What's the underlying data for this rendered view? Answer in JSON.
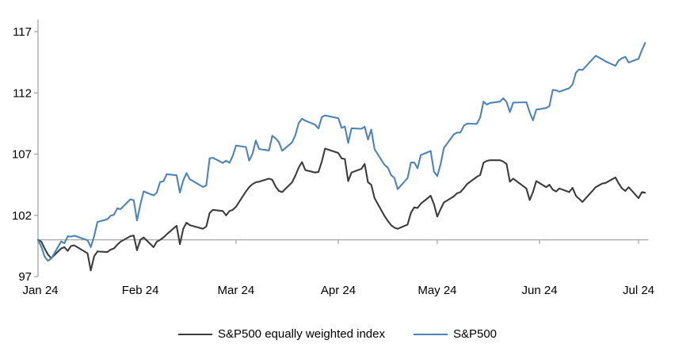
{
  "chart_data": {
    "type": "line",
    "title": "",
    "x_axis": {
      "tick_labels": [
        "Jan 24",
        "Feb 24",
        "Mar 24",
        "Apr 24",
        "May 24",
        "Jun 24",
        "Jul 24"
      ],
      "tick_days": [
        0,
        31,
        60,
        91,
        121,
        152,
        182
      ],
      "baseline_value": 100,
      "max_day": 184.5
    },
    "y_axis": {
      "tick_labels": [
        "97",
        "102",
        "107",
        "112",
        "117"
      ],
      "ticks": [
        97,
        102,
        107,
        112,
        117
      ],
      "min": 97,
      "max": 118
    },
    "grid": "off",
    "legend_position": "bottom-center",
    "axis_color": "#a6a6a6",
    "label_color": "#000000",
    "days": [
      0,
      1,
      2,
      3,
      4,
      7,
      8,
      9,
      10,
      11,
      15,
      16,
      17,
      18,
      21,
      22,
      23,
      24,
      25,
      28,
      29,
      30,
      31,
      32,
      35,
      36,
      37,
      38,
      39,
      42,
      43,
      44,
      45,
      46,
      50,
      51,
      52,
      53,
      56,
      57,
      58,
      59,
      60,
      63,
      64,
      65,
      66,
      67,
      70,
      71,
      72,
      73,
      74,
      77,
      78,
      79,
      80,
      81,
      84,
      85,
      86,
      87,
      91,
      92,
      93,
      94,
      95,
      98,
      99,
      100,
      101,
      102,
      105,
      106,
      107,
      108,
      109,
      112,
      113,
      114,
      115,
      116,
      119,
      120,
      121,
      122,
      123,
      126,
      127,
      128,
      129,
      130,
      133,
      134,
      135,
      136,
      137,
      140,
      141,
      142,
      143,
      144,
      148,
      149,
      150,
      151,
      154,
      155,
      156,
      157,
      158,
      161,
      162,
      163,
      164,
      165,
      168,
      169,
      171,
      172,
      175,
      176,
      177,
      178,
      179,
      182,
      183,
      184
    ],
    "series": [
      {
        "name": "S&P500 equally weighted index",
        "color": "#3d3d3d",
        "values": [
          100.0,
          99.85,
          99.3,
          98.8,
          98.5,
          99.3,
          99.4,
          99.1,
          99.5,
          99.55,
          98.9,
          97.5,
          98.65,
          99.05,
          99.0,
          99.2,
          99.3,
          99.6,
          99.85,
          100.3,
          100.35,
          99.15,
          100.0,
          100.2,
          99.4,
          99.85,
          100.0,
          100.2,
          100.45,
          101.15,
          99.65,
          100.9,
          101.4,
          101.2,
          100.9,
          101.1,
          102.2,
          102.45,
          102.35,
          102.0,
          102.35,
          102.45,
          102.7,
          103.95,
          104.3,
          104.55,
          104.7,
          104.75,
          105.0,
          104.9,
          104.35,
          104.0,
          103.9,
          104.7,
          105.25,
          105.9,
          106.35,
          105.7,
          105.5,
          105.55,
          106.4,
          107.45,
          107.1,
          106.65,
          106.6,
          104.8,
          105.5,
          105.8,
          106.2,
          104.7,
          104.5,
          103.4,
          101.95,
          101.55,
          101.2,
          101.0,
          100.9,
          101.25,
          102.2,
          102.65,
          102.6,
          102.95,
          103.6,
          102.9,
          101.9,
          102.5,
          103.05,
          103.55,
          103.8,
          103.9,
          104.2,
          104.55,
          105.15,
          105.3,
          106.3,
          106.45,
          106.5,
          106.5,
          106.4,
          106.2,
          104.75,
          105.0,
          104.2,
          103.25,
          103.9,
          104.8,
          104.3,
          104.5,
          104.1,
          103.95,
          104.2,
          103.9,
          104.25,
          103.6,
          103.35,
          103.1,
          104.0,
          104.3,
          104.6,
          104.65,
          105.1,
          104.6,
          104.2,
          104.0,
          104.3,
          103.4,
          103.9,
          103.85
        ]
      },
      {
        "name": "S&P500",
        "color": "#4e84b8",
        "values": [
          100.0,
          99.43,
          98.63,
          98.29,
          98.47,
          99.87,
          99.72,
          100.29,
          100.26,
          100.34,
          99.97,
          99.41,
          100.29,
          101.46,
          101.68,
          101.97,
          102.05,
          102.58,
          102.51,
          103.31,
          103.24,
          101.58,
          102.86,
          103.96,
          103.63,
          103.87,
          104.72,
          104.78,
          105.36,
          105.27,
          103.86,
          104.85,
          105.45,
          104.95,
          104.32,
          104.45,
          106.66,
          106.7,
          106.28,
          106.47,
          106.29,
          106.84,
          107.7,
          107.58,
          106.47,
          107.02,
          108.12,
          107.42,
          107.3,
          108.5,
          108.29,
          107.98,
          107.28,
          107.96,
          108.57,
          109.53,
          109.89,
          109.73,
          109.4,
          109.09,
          110.03,
          110.16,
          109.94,
          109.14,
          109.26,
          107.91,
          109.11,
          109.07,
          109.23,
          108.19,
          109.01,
          107.41,
          106.12,
          105.9,
          105.29,
          105.06,
          104.14,
          105.05,
          106.31,
          106.33,
          105.84,
          106.92,
          107.26,
          105.57,
          105.21,
          106.17,
          107.5,
          108.61,
          108.76,
          108.76,
          109.31,
          109.49,
          109.47,
          110.0,
          111.29,
          111.05,
          111.18,
          111.29,
          111.56,
          111.26,
          110.44,
          111.21,
          111.24,
          110.42,
          109.76,
          110.64,
          110.77,
          110.93,
          112.25,
          112.22,
          112.1,
          112.39,
          112.69,
          113.65,
          113.92,
          113.87,
          114.75,
          115.04,
          114.74,
          114.57,
          114.21,
          114.66,
          114.84,
          114.95,
          114.48,
          114.79,
          115.5,
          116.08
        ]
      }
    ],
    "legend": [
      "S&P500 equally weighted index",
      "S&P500"
    ]
  }
}
